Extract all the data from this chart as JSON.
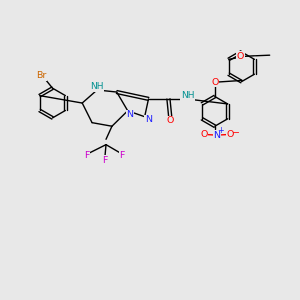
{
  "background_color": "#e8e8e8",
  "figsize": [
    3.0,
    3.0
  ],
  "dpi": 100,
  "bond_lw": 1.0,
  "fs": 6.8,
  "colors": {
    "bond": "#000000",
    "N": "#2020ff",
    "O": "#ff0000",
    "Br": "#cc6600",
    "F": "#cc00cc",
    "NH": "#009090",
    "NO_N": "#1a1aff",
    "NO_O": "#ff0000",
    "bg": "#e8e8e8"
  },
  "r_small": 0.44,
  "r_large": 0.5,
  "scale": 10.0
}
